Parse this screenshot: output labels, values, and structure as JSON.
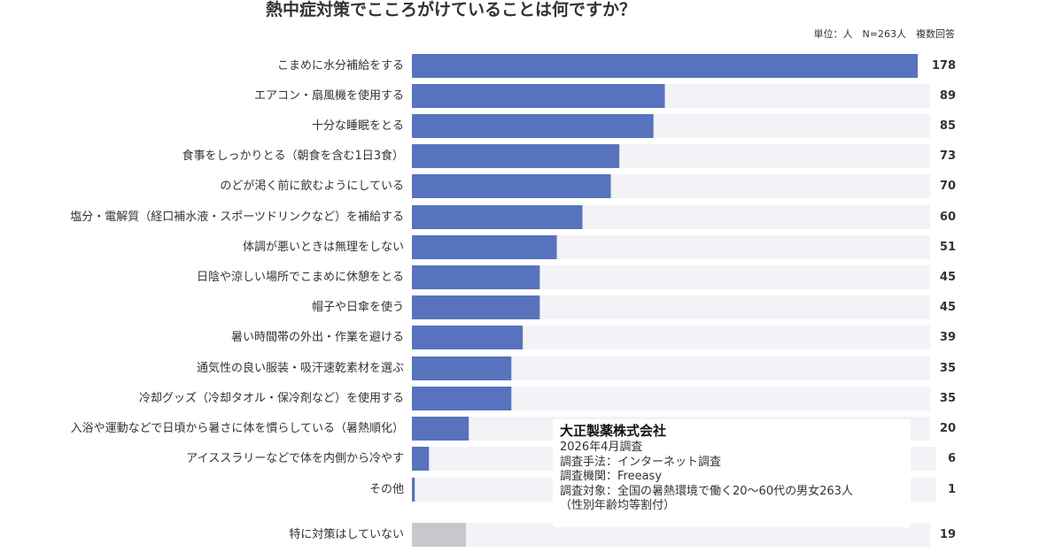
{
  "chart_data": {
    "type": "bar",
    "orientation": "horizontal",
    "title": "熱中症対策でこころがけていることは何ですか？",
    "unit_note": "単位：人　N=263人　複数回答",
    "categories": [
      "こまめに水分補給をする",
      "エアコン・扇風機を使用する",
      "十分な睡眠をとる",
      "食事をしっかりとる（朝食を含む1日3食）",
      "のどが渇く前に飲むようにしている",
      "塩分・電解質（経口補水液・スポーツドリンクなど）を補給する",
      "体調が悪いときは無理をしない",
      "日陰や涼しい場所でこまめに休憩をとる",
      "帽子や日傘を使う",
      "暑い時間帯の外出・作業を避ける",
      "通気性の良い服装・吸汗速乾素材を選ぶ",
      "冷却グッズ（冷却タオル・保冷剤など）を使用する",
      "入浴や運動などで日頃から暑さに体を慣らしている（暑熱順化）",
      "アイススラリーなどで体を内側から冷やす",
      "その他",
      "特に対策はしていない"
    ],
    "values": [
      178,
      89,
      85,
      73,
      70,
      60,
      51,
      45,
      45,
      39,
      35,
      35,
      20,
      6,
      1,
      19
    ],
    "value_labels": [
      "178",
      "89",
      "85",
      "73",
      "70",
      "60",
      "51",
      "45",
      "45",
      "39",
      "35",
      "35",
      "20",
      "6",
      "1",
      "19"
    ],
    "xlim": [
      0,
      178
    ],
    "colors": {
      "bar": "#5773bd",
      "bar_none": "#c8c8cc",
      "track": "#f3f2f6"
    }
  },
  "info_box": {
    "company": "大正製薬株式会社",
    "lines": [
      "2026年4月調査",
      "調査手法：インターネット調査",
      "調査機関：Freeasy",
      "調査対象：全国の暑熱環境で働く20〜60代の男女263人",
      "（性別年齢均等割付）"
    ]
  }
}
